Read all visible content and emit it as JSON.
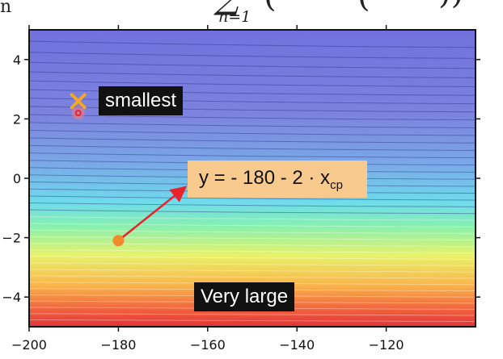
{
  "header": {
    "partial_text": "n",
    "formula_sub": "n=1"
  },
  "colors": {
    "plot_frame": "#111111",
    "arrow": "#e8232b",
    "start_point": "#f28a2e",
    "min_marker": "#f5a623",
    "min_point": "#e8232b",
    "equation_box": "#f9ca8e",
    "label_box": "#111111"
  },
  "chart_data": {
    "type": "heatmap",
    "title": "",
    "xlabel": "",
    "ylabel": "",
    "xlim": [
      -200,
      -100
    ],
    "ylim": [
      -5,
      5
    ],
    "x_ticks": [
      -200,
      -180,
      -160,
      -140,
      -120
    ],
    "x_tick_labels": [
      "−200",
      "−180",
      "−160",
      "−140",
      "−120"
    ],
    "y_ticks": [
      4,
      2,
      0,
      -2,
      -4
    ],
    "y_tick_labels": [
      "4",
      "2",
      "0",
      "−2",
      "−4"
    ],
    "colormap": "jet",
    "grid": false,
    "points": [
      {
        "name": "start",
        "x": -180,
        "y": -2.1
      },
      {
        "name": "minimum",
        "x": -189,
        "y": 2.2
      }
    ],
    "arrow": {
      "from": [
        -180,
        -2.1
      ],
      "to": [
        -165,
        -0.3
      ]
    },
    "minimum_marker": {
      "symbol": "x",
      "x": -189,
      "y": 2.6
    },
    "annotations": {
      "smallest": "smallest",
      "very_large": "Very large",
      "equation_prefix": "y = - 180 - 2 · x",
      "equation_subscript": "cp"
    }
  }
}
